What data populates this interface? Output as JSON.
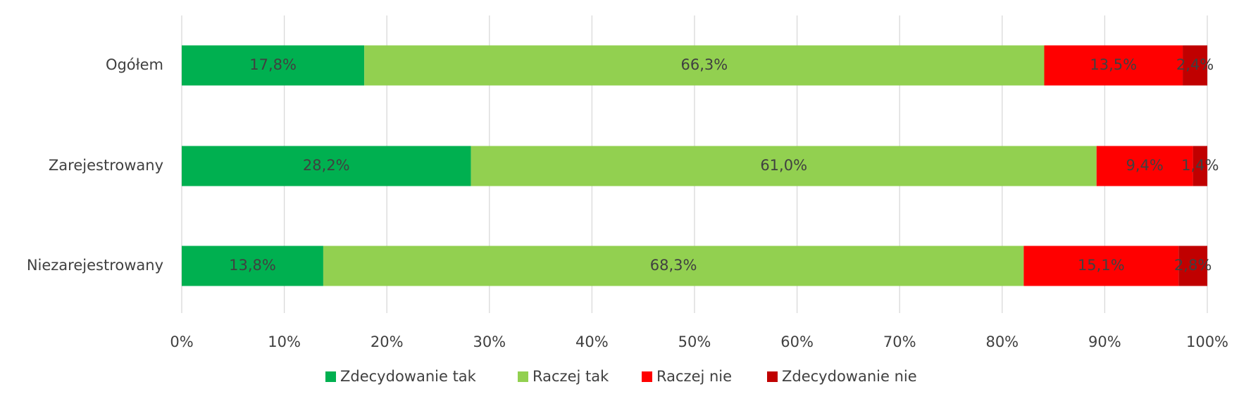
{
  "chart_data": {
    "type": "stacked_barh",
    "categories": [
      "Ogółem",
      "Zarejestrowany",
      "Niezarejestrowany"
    ],
    "series": [
      {
        "name": "Zdecydowanie tak",
        "color": "#00b050",
        "values": [
          17.8,
          28.2,
          13.8
        ],
        "value_labels": [
          "17,8%",
          "28,2%",
          "13,8%"
        ]
      },
      {
        "name": "Raczej tak",
        "color": "#92d050",
        "values": [
          66.3,
          61.0,
          68.3
        ],
        "value_labels": [
          "66,3%",
          "61,0%",
          "68,3%"
        ]
      },
      {
        "name": "Raczej nie",
        "color": "#ff0000",
        "values": [
          13.5,
          9.4,
          15.1
        ],
        "value_labels": [
          "13,5%",
          "9,4%",
          "15,1%"
        ]
      },
      {
        "name": "Zdecydowanie nie",
        "color": "#c00000",
        "values": [
          2.4,
          1.4,
          2.8
        ],
        "value_labels": [
          "2,4%",
          "1,4%",
          "2,8%"
        ]
      }
    ],
    "xlim": [
      0,
      100
    ],
    "xticks": [
      {
        "value": 0,
        "label": "0%"
      },
      {
        "value": 10,
        "label": "10%"
      },
      {
        "value": 20,
        "label": "20%"
      },
      {
        "value": 30,
        "label": "30%"
      },
      {
        "value": 40,
        "label": "40%"
      },
      {
        "value": 50,
        "label": "50%"
      },
      {
        "value": 60,
        "label": "60%"
      },
      {
        "value": 70,
        "label": "70%"
      },
      {
        "value": 80,
        "label": "80%"
      },
      {
        "value": 90,
        "label": "90%"
      },
      {
        "value": 100,
        "label": "100%"
      }
    ],
    "grid": true,
    "legend": "bottom"
  }
}
